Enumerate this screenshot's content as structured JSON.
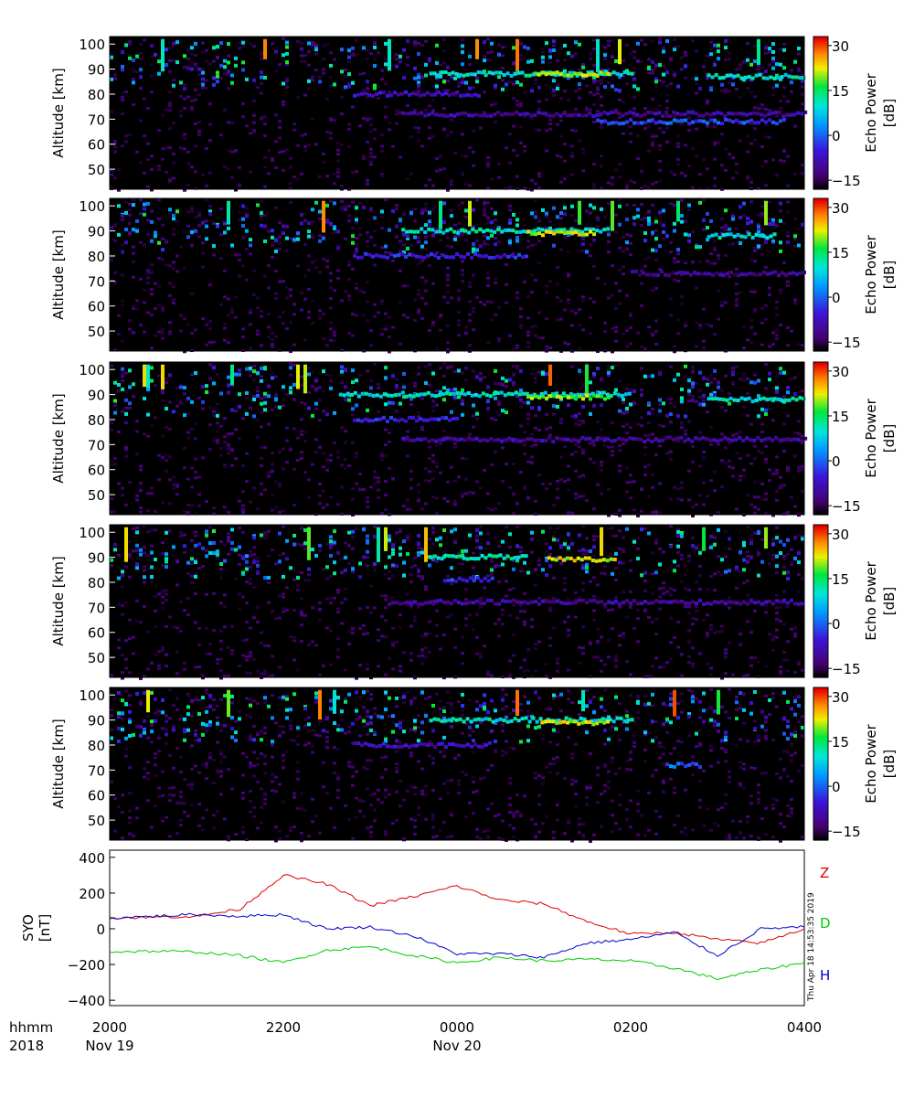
{
  "stamp": "Thu Apr 18 14:53:35 2019",
  "time_axis": {
    "row_label_1": "hhmm",
    "row_label_2": "2018",
    "ticks": [
      {
        "time": "2000",
        "date": "Nov 19"
      },
      {
        "time": "2200",
        "date": ""
      },
      {
        "time": "0000",
        "date": "Nov 20"
      },
      {
        "time": "0200",
        "date": ""
      },
      {
        "time": "0400",
        "date": ""
      }
    ]
  },
  "chart_data": [
    {
      "type": "heatmap",
      "panel": 1,
      "ylabel": "Altitude [km]",
      "yticks": [
        50,
        60,
        70,
        80,
        90,
        100
      ],
      "ylim": [
        42,
        103
      ],
      "colorbar": {
        "label": "Echo Power",
        "unit": "[dB]",
        "ticks": [
          -15,
          0,
          15,
          30
        ],
        "range": [
          -18,
          33
        ]
      },
      "layers": [
        {
          "alt": 88,
          "t": [
            0.46,
            0.75
          ],
          "power": 10
        },
        {
          "alt": 88,
          "t": [
            0.61,
            0.72
          ],
          "power": 20
        },
        {
          "alt": 87,
          "t": [
            0.86,
            1.0
          ],
          "power": 10
        },
        {
          "alt": 80,
          "t": [
            0.35,
            0.53
          ],
          "power": -8
        },
        {
          "alt": 72,
          "t": [
            0.42,
            1.0
          ],
          "power": -10
        },
        {
          "alt": 69,
          "t": [
            0.7,
            0.97
          ],
          "power": -2
        }
      ]
    },
    {
      "type": "heatmap",
      "panel": 2,
      "ylabel": "Altitude [km]",
      "yticks": [
        50,
        60,
        70,
        80,
        90,
        100
      ],
      "ylim": [
        42,
        103
      ],
      "colorbar": {
        "label": "Echo Power",
        "unit": "[dB]",
        "ticks": [
          -15,
          0,
          15,
          30
        ],
        "range": [
          -18,
          33
        ]
      },
      "layers": [
        {
          "alt": 90,
          "t": [
            0.42,
            0.72
          ],
          "power": 10
        },
        {
          "alt": 89,
          "t": [
            0.6,
            0.7
          ],
          "power": 22
        },
        {
          "alt": 80,
          "t": [
            0.35,
            0.6
          ],
          "power": -5
        },
        {
          "alt": 88,
          "t": [
            0.86,
            0.96
          ],
          "power": 10
        },
        {
          "alt": 73,
          "t": [
            0.75,
            1.0
          ],
          "power": -12
        }
      ]
    },
    {
      "type": "heatmap",
      "panel": 3,
      "ylabel": "Altitude [km]",
      "yticks": [
        50,
        60,
        70,
        80,
        90,
        100
      ],
      "ylim": [
        42,
        103
      ],
      "colorbar": {
        "label": "Echo Power",
        "unit": "[dB]",
        "ticks": [
          -15,
          0,
          15,
          30
        ],
        "range": [
          -18,
          33
        ]
      },
      "layers": [
        {
          "alt": 90,
          "t": [
            0.33,
            0.75
          ],
          "power": 10
        },
        {
          "alt": 89,
          "t": [
            0.6,
            0.72
          ],
          "power": 20
        },
        {
          "alt": 88,
          "t": [
            0.86,
            1.0
          ],
          "power": 10
        },
        {
          "alt": 80,
          "t": [
            0.35,
            0.5
          ],
          "power": -5
        },
        {
          "alt": 72,
          "t": [
            0.42,
            1.0
          ],
          "power": -10
        }
      ]
    },
    {
      "type": "heatmap",
      "panel": 4,
      "ylabel": "Altitude [km]",
      "yticks": [
        50,
        60,
        70,
        80,
        90,
        100
      ],
      "ylim": [
        42,
        103
      ],
      "colorbar": {
        "label": "Echo Power",
        "unit": "[dB]",
        "ticks": [
          -15,
          0,
          15,
          30
        ],
        "range": [
          -18,
          33
        ]
      },
      "layers": [
        {
          "alt": 90,
          "t": [
            0.46,
            0.6
          ],
          "power": 12
        },
        {
          "alt": 89,
          "t": [
            0.63,
            0.73
          ],
          "power": 22
        },
        {
          "alt": 81,
          "t": [
            0.48,
            0.55
          ],
          "power": -3
        },
        {
          "alt": 72,
          "t": [
            0.4,
            1.0
          ],
          "power": -10
        }
      ]
    },
    {
      "type": "heatmap",
      "panel": 5,
      "ylabel": "Altitude [km]",
      "yticks": [
        50,
        60,
        70,
        80,
        90,
        100
      ],
      "ylim": [
        42,
        103
      ],
      "colorbar": {
        "label": "Echo Power",
        "unit": "[dB]",
        "ticks": [
          -15,
          0,
          15,
          30
        ],
        "range": [
          -18,
          33
        ]
      },
      "layers": [
        {
          "alt": 90,
          "t": [
            0.46,
            0.75
          ],
          "power": 10
        },
        {
          "alt": 89,
          "t": [
            0.62,
            0.72
          ],
          "power": 22
        },
        {
          "alt": 80,
          "t": [
            0.35,
            0.55
          ],
          "power": -8
        },
        {
          "alt": 72,
          "t": [
            0.8,
            0.85
          ],
          "power": 0
        }
      ]
    },
    {
      "type": "line",
      "panel": 6,
      "ylabel": "SYO",
      "yunit": "[nT]",
      "ylim": [
        -430,
        440
      ],
      "yticks": [
        -400,
        -200,
        0,
        200,
        400
      ],
      "x": [
        "2000",
        "2030",
        "2100",
        "2130",
        "2200",
        "2230",
        "2300",
        "2330",
        "0000",
        "0030",
        "0100",
        "0130",
        "0200",
        "0230",
        "0300",
        "0330",
        "0400"
      ],
      "series": [
        {
          "name": "Z",
          "color": "#dd0000",
          "values": [
            60,
            65,
            70,
            110,
            300,
            250,
            130,
            180,
            240,
            160,
            140,
            40,
            -30,
            -20,
            -60,
            -80,
            0
          ]
        },
        {
          "name": "D",
          "color": "#00cc00",
          "values": [
            -130,
            -125,
            -130,
            -150,
            -190,
            -120,
            -100,
            -150,
            -190,
            -160,
            -180,
            -170,
            -180,
            -220,
            -280,
            -230,
            -190
          ]
        },
        {
          "name": "H",
          "color": "#0000cc",
          "values": [
            60,
            70,
            80,
            70,
            80,
            0,
            10,
            -40,
            -140,
            -140,
            -160,
            -80,
            -60,
            -20,
            -150,
            0,
            10
          ]
        }
      ]
    }
  ]
}
